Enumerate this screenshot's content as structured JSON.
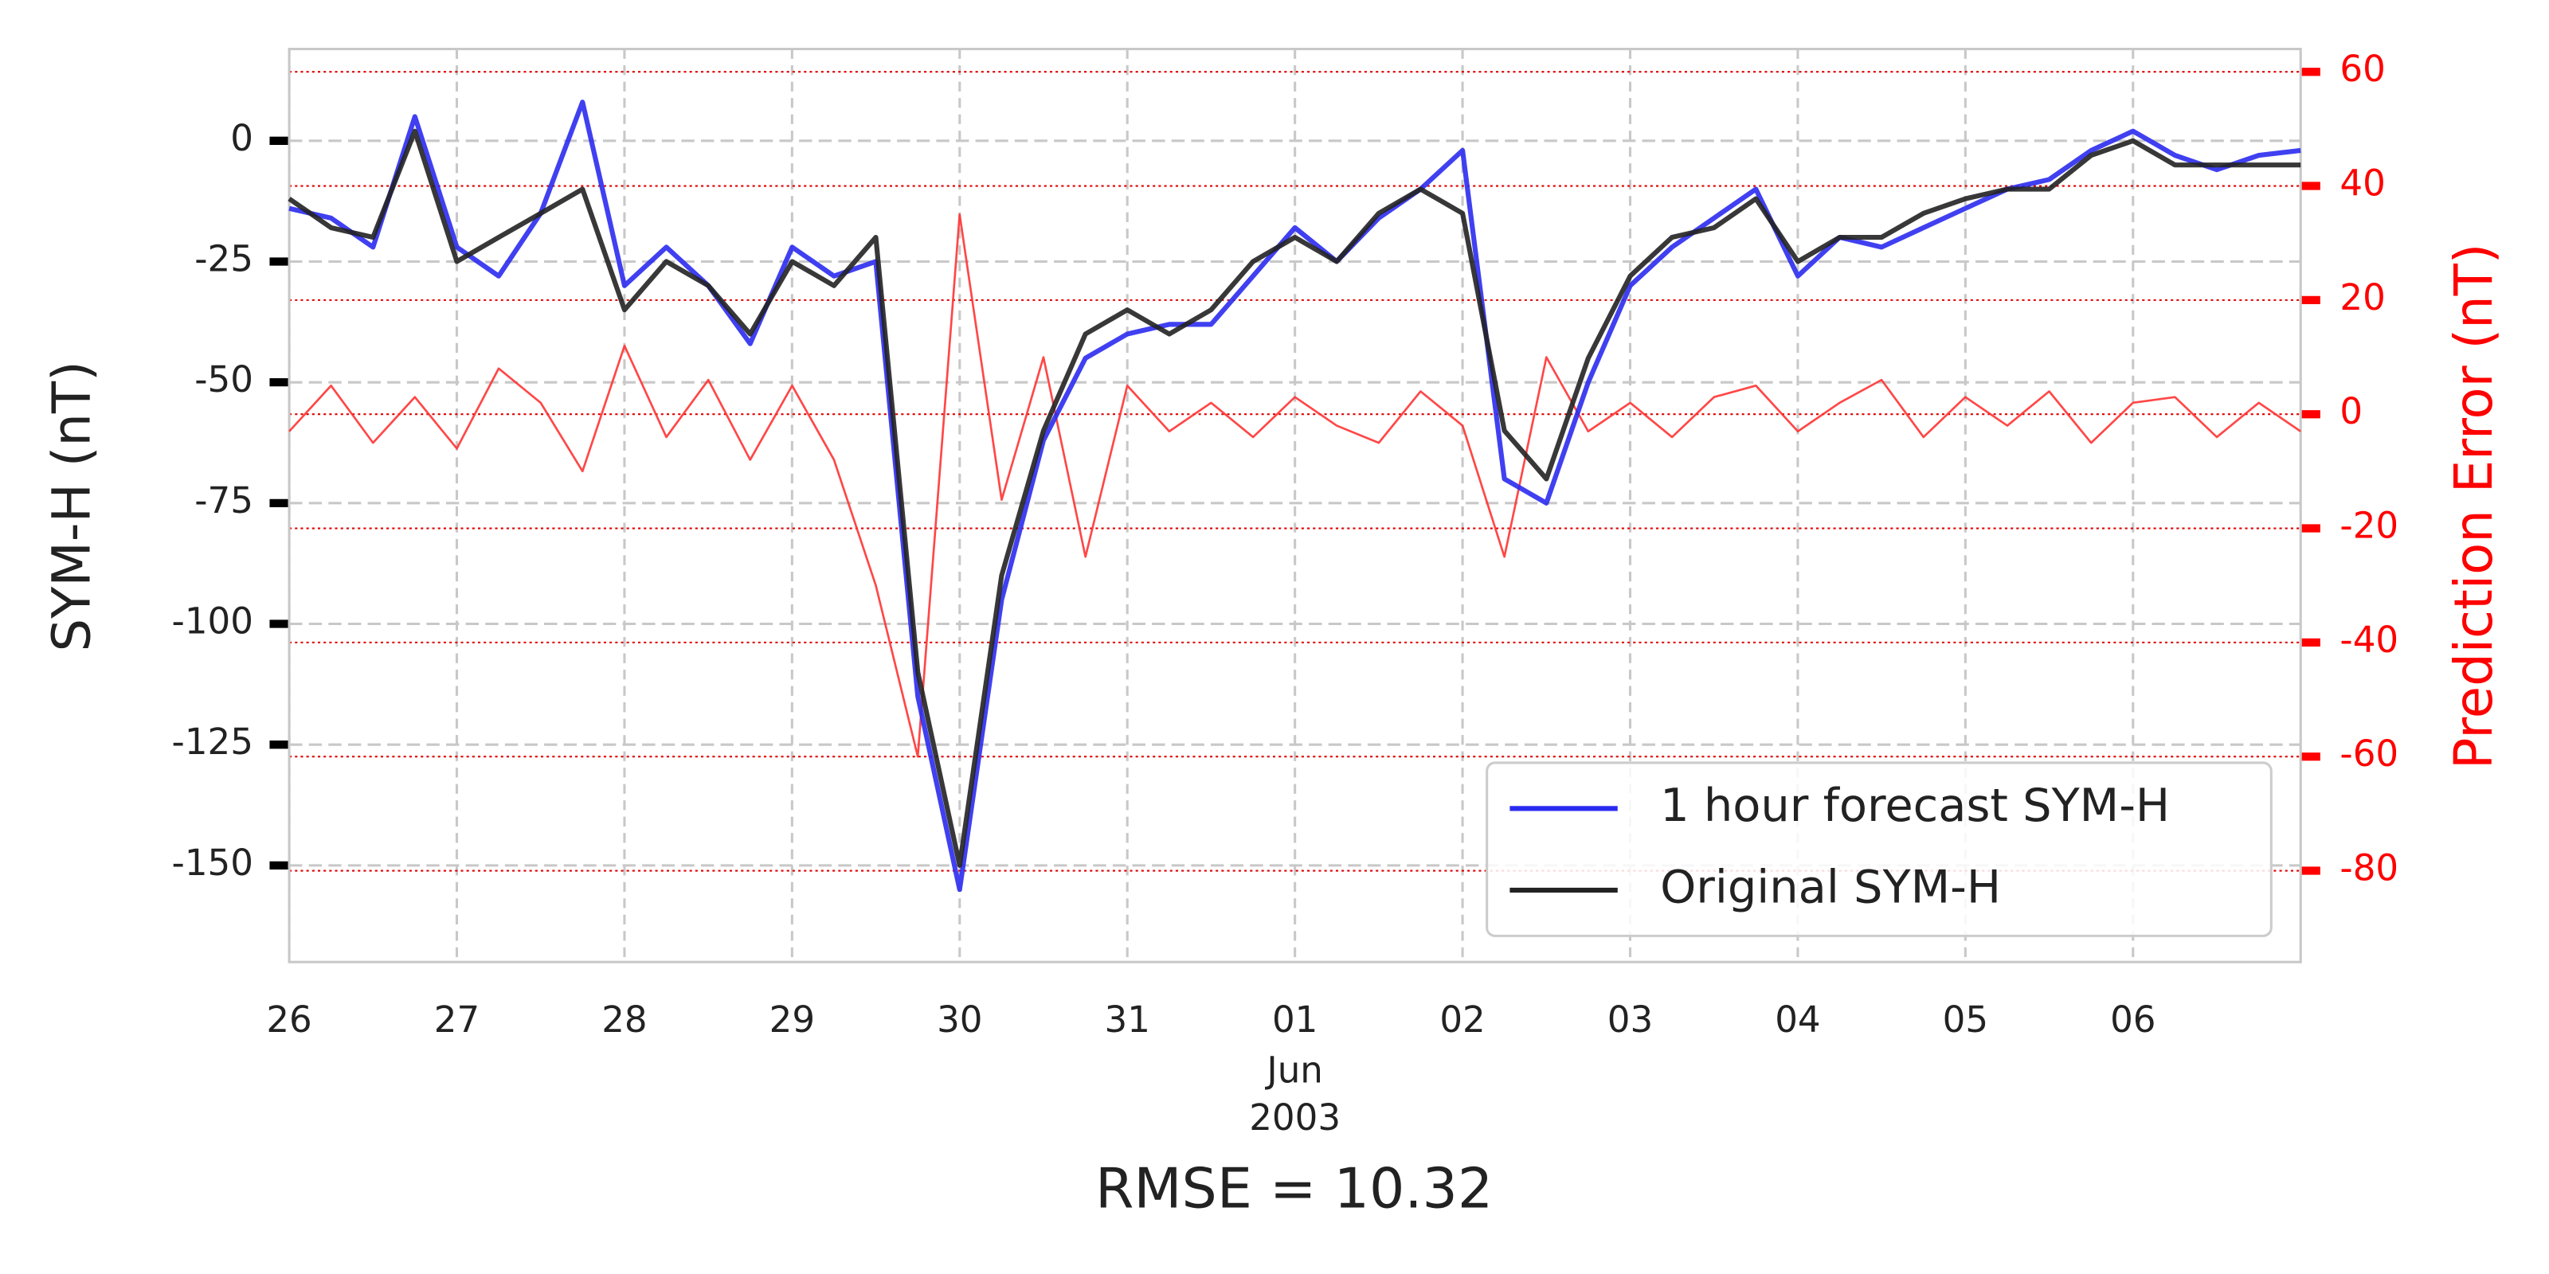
{
  "chart_data": {
    "type": "line",
    "title": "RMSE = 10.32",
    "y_label": "SYM-H (nT)",
    "y2_label": "Prediction Error (nT)",
    "x": [
      0,
      0.25,
      0.5,
      0.75,
      1,
      1.25,
      1.5,
      1.75,
      2,
      2.25,
      2.5,
      2.75,
      3,
      3.25,
      3.5,
      3.75,
      4,
      4.25,
      4.5,
      4.75,
      5,
      5.25,
      5.5,
      5.75,
      6,
      6.25,
      6.5,
      6.75,
      7,
      7.25,
      7.5,
      7.75,
      8,
      8.25,
      8.5,
      8.75,
      9,
      9.25,
      9.5,
      9.75,
      10,
      10.25,
      10.5,
      10.75,
      11,
      11.25,
      11.5,
      11.75,
      12
    ],
    "xlim": [
      0,
      12
    ],
    "xticks": [
      {
        "value": 0,
        "label": "26"
      },
      {
        "value": 1,
        "label": "27"
      },
      {
        "value": 2,
        "label": "28"
      },
      {
        "value": 3,
        "label": "29"
      },
      {
        "value": 4,
        "label": "30"
      },
      {
        "value": 5,
        "label": "31"
      },
      {
        "value": 6,
        "label": "01"
      },
      {
        "value": 7,
        "label": "02"
      },
      {
        "value": 8,
        "label": "03"
      },
      {
        "value": 9,
        "label": "04"
      },
      {
        "value": 10,
        "label": "05"
      },
      {
        "value": 11,
        "label": "06"
      }
    ],
    "x_month_label": "Jun",
    "x_year_label": "2003",
    "ylim": [
      -170,
      19
    ],
    "yticks": [
      0,
      -25,
      -50,
      -75,
      -100,
      -125,
      -150
    ],
    "y2lim": [
      -96,
      64
    ],
    "y2ticks": [
      60,
      40,
      20,
      0,
      -20,
      -40,
      -60,
      -80
    ],
    "grid": true,
    "legend": "lower right",
    "series": [
      {
        "name": "Prediction error",
        "axis": "y2",
        "color": "#ff3333",
        "values": [
          -3,
          5,
          -5,
          3,
          -6,
          8,
          2,
          -10,
          12,
          -4,
          6,
          -8,
          5,
          -8,
          -30,
          -60,
          35,
          -15,
          10,
          -25,
          5,
          -3,
          2,
          -4,
          3,
          -2,
          -5,
          4,
          -2,
          -25,
          10,
          -3,
          2,
          -4,
          3,
          5,
          -3,
          2,
          6,
          -4,
          3,
          -2,
          4,
          -5,
          2,
          3,
          -4,
          2,
          -3
        ]
      },
      {
        "name": "1 hour forecast SYM-H",
        "color": "#2b2bf0",
        "values": [
          -14,
          -16,
          -22,
          5,
          -22,
          -28,
          -15,
          8,
          -30,
          -22,
          -30,
          -42,
          -22,
          -28,
          -25,
          -115,
          -155,
          -95,
          -62,
          -45,
          -40,
          -38,
          -38,
          -28,
          -18,
          -25,
          -16,
          -10,
          -2,
          -70,
          -75,
          -50,
          -30,
          -22,
          -16,
          -10,
          -28,
          -20,
          -22,
          -18,
          -14,
          -10,
          -8,
          -2,
          2,
          -3,
          -6,
          -3,
          -2
        ]
      },
      {
        "name": "Original SYM-H",
        "color": "#222222",
        "values": [
          -12,
          -18,
          -20,
          2,
          -25,
          -20,
          -15,
          -10,
          -35,
          -25,
          -30,
          -40,
          -25,
          -30,
          -20,
          -110,
          -150,
          -90,
          -60,
          -40,
          -35,
          -40,
          -35,
          -25,
          -20,
          -25,
          -15,
          -10,
          -15,
          -60,
          -70,
          -45,
          -28,
          -20,
          -18,
          -12,
          -25,
          -20,
          -20,
          -15,
          -12,
          -10,
          -10,
          -3,
          0,
          -5,
          -5,
          -5,
          -5
        ]
      }
    ]
  }
}
